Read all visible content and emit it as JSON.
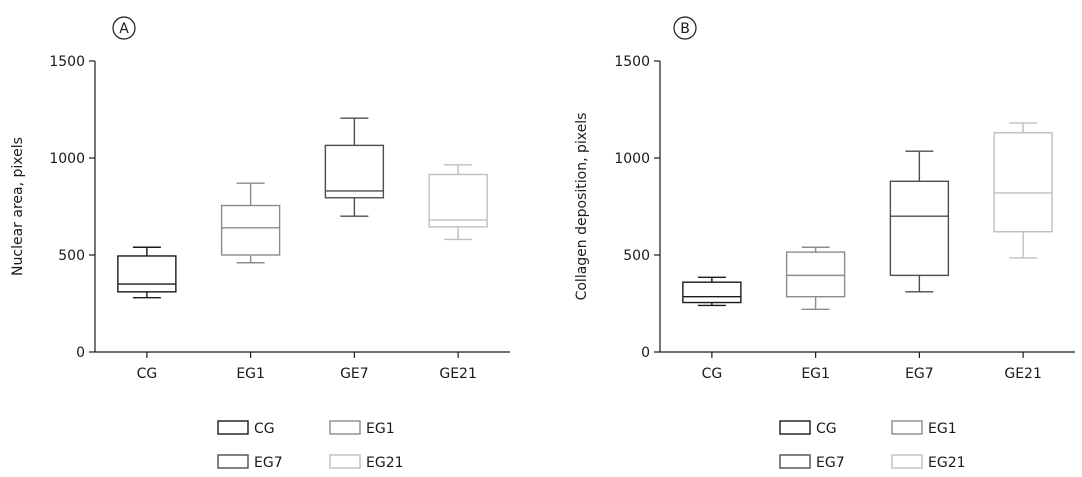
{
  "chart_data": [
    {
      "panel_label": "A",
      "type": "box",
      "ylabel": "Nuclear area, pixels",
      "xlabel": "",
      "ylim": [
        0,
        1500
      ],
      "yticks": [
        "0",
        "500",
        "1000",
        "1500"
      ],
      "categories": [
        "CG",
        "EG1",
        "GE7",
        "GE21"
      ],
      "boxes": [
        {
          "category": "CG",
          "min": 280,
          "q1": 310,
          "median": 350,
          "q3": 495,
          "max": 540,
          "color": "#1a1a1a"
        },
        {
          "category": "EG1",
          "min": 460,
          "q1": 500,
          "median": 640,
          "q3": 755,
          "max": 870,
          "color": "#8c8c8c"
        },
        {
          "category": "GE7",
          "min": 700,
          "q1": 795,
          "median": 830,
          "q3": 1065,
          "max": 1205,
          "color": "#4d4d4d"
        },
        {
          "category": "GE21",
          "min": 580,
          "q1": 645,
          "median": 680,
          "q3": 915,
          "max": 965,
          "color": "#bfbfbf"
        }
      ],
      "legend": [
        {
          "label": "CG",
          "color": "#1a1a1a"
        },
        {
          "label": "EG1",
          "color": "#8c8c8c"
        },
        {
          "label": "EG7",
          "color": "#4d4d4d"
        },
        {
          "label": "EG21",
          "color": "#bfbfbf"
        }
      ]
    },
    {
      "panel_label": "B",
      "type": "box",
      "ylabel": "Collagen deposition, pixels",
      "xlabel": "",
      "ylim": [
        0,
        1500
      ],
      "yticks": [
        "0",
        "500",
        "1000",
        "1500"
      ],
      "categories": [
        "CG",
        "EG1",
        "EG7",
        "GE21"
      ],
      "boxes": [
        {
          "category": "CG",
          "min": 240,
          "q1": 255,
          "median": 285,
          "q3": 360,
          "max": 385,
          "color": "#1a1a1a"
        },
        {
          "category": "EG1",
          "min": 220,
          "q1": 285,
          "median": 395,
          "q3": 515,
          "max": 540,
          "color": "#8c8c8c"
        },
        {
          "category": "EG7",
          "min": 310,
          "q1": 395,
          "median": 700,
          "q3": 880,
          "max": 1035,
          "color": "#4d4d4d"
        },
        {
          "category": "GE21",
          "min": 485,
          "q1": 620,
          "median": 820,
          "q3": 1130,
          "max": 1180,
          "color": "#bfbfbf"
        }
      ],
      "legend": [
        {
          "label": "CG",
          "color": "#1a1a1a"
        },
        {
          "label": "EG1",
          "color": "#8c8c8c"
        },
        {
          "label": "EG7",
          "color": "#4d4d4d"
        },
        {
          "label": "EG21",
          "color": "#bfbfbf"
        }
      ]
    }
  ]
}
